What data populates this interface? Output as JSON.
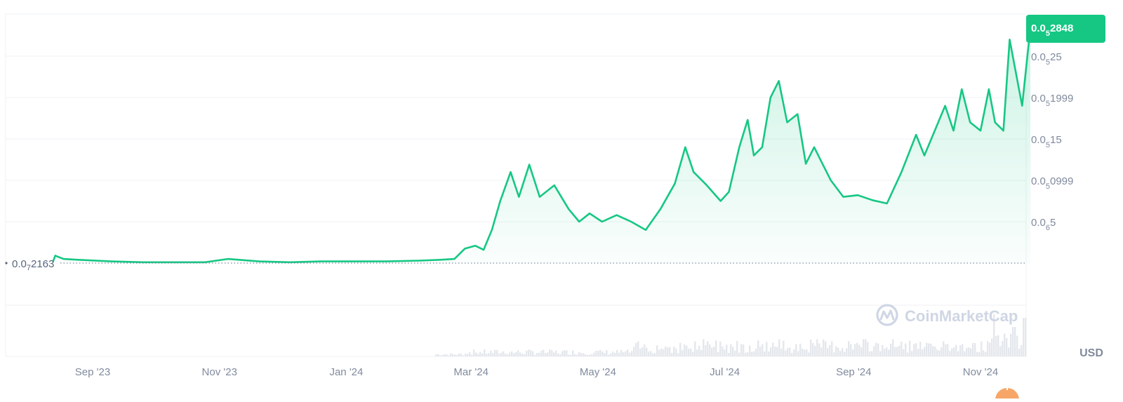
{
  "chart_data": {
    "type": "area",
    "currency_label": "USD",
    "watermark": "CoinMarketCap",
    "current_price": {
      "main": "0.0",
      "sub": "5",
      "rest": "2848",
      "value": 2.848e-06
    },
    "baseline": {
      "main": "0.0",
      "sub": "7",
      "rest": "2163",
      "value": 2.163e-08
    },
    "y_ticks": [
      {
        "main": "0.0",
        "sub": "6",
        "rest": "5",
        "value": 5e-07
      },
      {
        "main": "0.0",
        "sub": "5",
        "rest": "0999",
        "value": 9.99e-07
      },
      {
        "main": "0.0",
        "sub": "5",
        "rest": "15",
        "value": 1.5e-06
      },
      {
        "main": "0.0",
        "sub": "5",
        "rest": "1999",
        "value": 1.999e-06
      },
      {
        "main": "0.0",
        "sub": "5",
        "rest": "25",
        "value": 2.5e-06
      }
    ],
    "x_ticks": [
      {
        "label": "Sep '23",
        "date": "2023-09-01"
      },
      {
        "label": "Nov '23",
        "date": "2023-11-01"
      },
      {
        "label": "Jan '24",
        "date": "2024-01-01"
      },
      {
        "label": "Mar '24",
        "date": "2024-03-01"
      },
      {
        "label": "May '24",
        "date": "2024-05-01"
      },
      {
        "label": "Jul '24",
        "date": "2024-07-01"
      },
      {
        "label": "Sep '24",
        "date": "2024-09-01"
      },
      {
        "label": "Nov '24",
        "date": "2024-11-01"
      }
    ],
    "x_range": [
      "2023-08-13",
      "2024-11-25"
    ],
    "y_range": [
      0.0,
      2.998e-06
    ],
    "series": [
      {
        "values": [
          [
            "2023-08-13",
            2.163e-08
          ],
          [
            "2023-08-14",
            9e-08
          ],
          [
            "2023-08-18",
            5e-08
          ],
          [
            "2023-08-25",
            4e-08
          ],
          [
            "2023-09-10",
            2e-08
          ],
          [
            "2023-09-25",
            1e-08
          ],
          [
            "2023-10-10",
            1e-08
          ],
          [
            "2023-10-25",
            1e-08
          ],
          [
            "2023-11-05",
            5e-08
          ],
          [
            "2023-11-20",
            2e-08
          ],
          [
            "2023-12-05",
            1e-08
          ],
          [
            "2023-12-20",
            2e-08
          ],
          [
            "2024-01-05",
            2e-08
          ],
          [
            "2024-01-20",
            2e-08
          ],
          [
            "2024-02-05",
            3e-08
          ],
          [
            "2024-02-15",
            4e-08
          ],
          [
            "2024-02-22",
            5e-08
          ],
          [
            "2024-02-27",
            1.75e-07
          ],
          [
            "2024-03-03",
            2.1e-07
          ],
          [
            "2024-03-07",
            1.6e-07
          ],
          [
            "2024-03-11",
            4e-07
          ],
          [
            "2024-03-15",
            7.5e-07
          ],
          [
            "2024-03-20",
            1.1e-06
          ],
          [
            "2024-03-24",
            8e-07
          ],
          [
            "2024-03-29",
            1.19e-06
          ],
          [
            "2024-04-03",
            8e-07
          ],
          [
            "2024-04-10",
            9.4e-07
          ],
          [
            "2024-04-17",
            6.5e-07
          ],
          [
            "2024-04-22",
            5e-07
          ],
          [
            "2024-04-27",
            6e-07
          ],
          [
            "2024-05-03",
            5e-07
          ],
          [
            "2024-05-10",
            5.8e-07
          ],
          [
            "2024-05-17",
            5e-07
          ],
          [
            "2024-05-24",
            4e-07
          ],
          [
            "2024-05-31",
            6.5e-07
          ],
          [
            "2024-06-07",
            9.6e-07
          ],
          [
            "2024-06-12",
            1.4e-06
          ],
          [
            "2024-06-16",
            1.1e-06
          ],
          [
            "2024-06-22",
            9.5e-07
          ],
          [
            "2024-06-29",
            7.5e-07
          ],
          [
            "2024-07-03",
            8.6e-07
          ],
          [
            "2024-07-08",
            1.4e-06
          ],
          [
            "2024-07-12",
            1.73e-06
          ],
          [
            "2024-07-15",
            1.3e-06
          ],
          [
            "2024-07-19",
            1.4e-06
          ],
          [
            "2024-07-23",
            2e-06
          ],
          [
            "2024-07-27",
            2.2e-06
          ],
          [
            "2024-07-31",
            1.7e-06
          ],
          [
            "2024-08-05",
            1.8e-06
          ],
          [
            "2024-08-09",
            1.2e-06
          ],
          [
            "2024-08-13",
            1.4e-06
          ],
          [
            "2024-08-17",
            1.2e-06
          ],
          [
            "2024-08-21",
            1e-06
          ],
          [
            "2024-08-27",
            8e-07
          ],
          [
            "2024-09-03",
            8.2e-07
          ],
          [
            "2024-09-10",
            7.6e-07
          ],
          [
            "2024-09-17",
            7.2e-07
          ],
          [
            "2024-09-24",
            1.1e-06
          ],
          [
            "2024-10-01",
            1.55e-06
          ],
          [
            "2024-10-05",
            1.3e-06
          ],
          [
            "2024-10-10",
            1.6e-06
          ],
          [
            "2024-10-15",
            1.9e-06
          ],
          [
            "2024-10-19",
            1.6e-06
          ],
          [
            "2024-10-23",
            2.1e-06
          ],
          [
            "2024-10-27",
            1.7e-06
          ],
          [
            "2024-11-01",
            1.6e-06
          ],
          [
            "2024-11-05",
            2.1e-06
          ],
          [
            "2024-11-08",
            1.7e-06
          ],
          [
            "2024-11-12",
            1.6e-06
          ],
          [
            "2024-11-15",
            2.7e-06
          ],
          [
            "2024-11-18",
            2.3e-06
          ],
          [
            "2024-11-21",
            1.9e-06
          ],
          [
            "2024-11-25",
            2.848e-06
          ]
        ]
      }
    ],
    "colors": {
      "line": "#16c784",
      "area_top": "#16c784",
      "badge_bg": "#16c784",
      "badge_text": "#ffffff",
      "grid": "#eff2f5",
      "axis_text": "#808a9d",
      "baseline_dots": "#808a9d",
      "volume": "#e4e7ec",
      "watermark": "#cfd6e4"
    }
  }
}
